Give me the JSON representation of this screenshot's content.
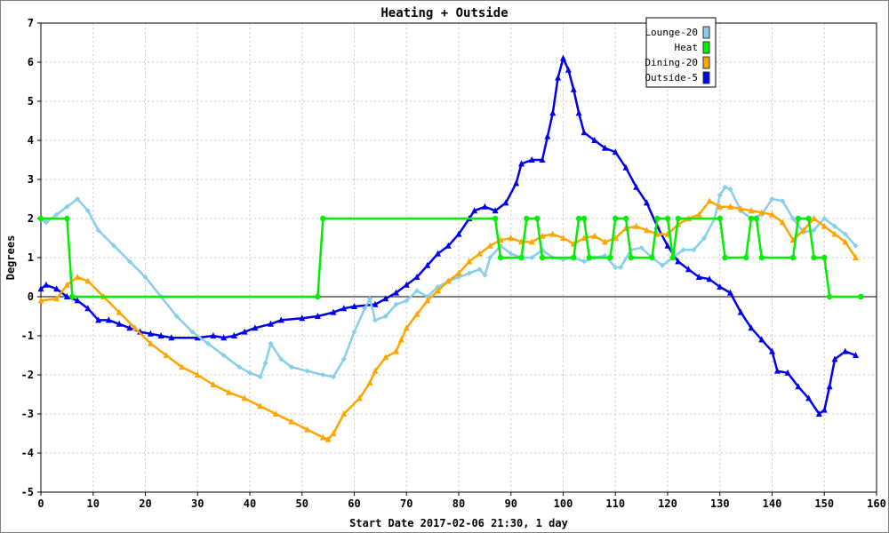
{
  "chart_data": {
    "type": "line",
    "title": "Heating + Outside",
    "xlabel": "Start Date 2017-02-06 21:30, 1 day",
    "ylabel": "Degrees",
    "xlim": [
      0,
      160
    ],
    "ylim": [
      -5,
      7
    ],
    "x_ticks": [
      "0",
      "10",
      "20",
      "30",
      "40",
      "50",
      "60",
      "70",
      "80",
      "90",
      "100",
      "110",
      "120",
      "130",
      "140",
      "150",
      "160"
    ],
    "y_ticks": [
      "-5",
      "-4",
      "-3",
      "-2",
      "-1",
      "0",
      "1",
      "2",
      "3",
      "4",
      "5",
      "6",
      "7"
    ],
    "grid": true,
    "legend_position": "top-right",
    "series": [
      {
        "name": "Lounge-20",
        "color": "#87ceeb",
        "marker": "diamond",
        "points": [
          [
            0,
            2.0
          ],
          [
            1,
            1.9
          ],
          [
            3,
            2.1
          ],
          [
            5,
            2.3
          ],
          [
            7,
            2.5
          ],
          [
            9,
            2.2
          ],
          [
            11,
            1.7
          ],
          [
            14,
            1.3
          ],
          [
            17,
            0.9
          ],
          [
            20,
            0.5
          ],
          [
            23,
            0.0
          ],
          [
            26,
            -0.5
          ],
          [
            29,
            -0.9
          ],
          [
            32,
            -1.2
          ],
          [
            35,
            -1.5
          ],
          [
            38,
            -1.8
          ],
          [
            40,
            -1.95
          ],
          [
            42,
            -2.05
          ],
          [
            43,
            -1.7
          ],
          [
            44,
            -1.2
          ],
          [
            46,
            -1.6
          ],
          [
            48,
            -1.8
          ],
          [
            51,
            -1.9
          ],
          [
            54,
            -2.0
          ],
          [
            56,
            -2.05
          ],
          [
            58,
            -1.6
          ],
          [
            60,
            -0.9
          ],
          [
            62,
            -0.3
          ],
          [
            63,
            -0.05
          ],
          [
            64,
            -0.6
          ],
          [
            66,
            -0.5
          ],
          [
            68,
            -0.2
          ],
          [
            70,
            -0.1
          ],
          [
            72,
            0.15
          ],
          [
            74,
            0.0
          ],
          [
            76,
            0.25
          ],
          [
            78,
            0.4
          ],
          [
            80,
            0.5
          ],
          [
            82,
            0.6
          ],
          [
            84,
            0.7
          ],
          [
            85,
            0.55
          ],
          [
            86,
            1.0
          ],
          [
            88,
            1.3
          ],
          [
            90,
            1.1
          ],
          [
            92,
            1.0
          ],
          [
            94,
            1.0
          ],
          [
            96,
            1.2
          ],
          [
            98,
            1.0
          ],
          [
            100,
            0.95
          ],
          [
            102,
            1.0
          ],
          [
            104,
            0.9
          ],
          [
            106,
            1.0
          ],
          [
            108,
            1.05
          ],
          [
            110,
            0.75
          ],
          [
            111,
            0.75
          ],
          [
            113,
            1.2
          ],
          [
            115,
            1.25
          ],
          [
            117,
            1.0
          ],
          [
            119,
            0.8
          ],
          [
            121,
            1.0
          ],
          [
            123,
            1.2
          ],
          [
            125,
            1.2
          ],
          [
            127,
            1.5
          ],
          [
            129,
            2.0
          ],
          [
            130,
            2.6
          ],
          [
            131,
            2.8
          ],
          [
            132,
            2.75
          ],
          [
            134,
            2.2
          ],
          [
            136,
            2.0
          ],
          [
            138,
            2.1
          ],
          [
            140,
            2.5
          ],
          [
            142,
            2.45
          ],
          [
            144,
            2.0
          ],
          [
            146,
            1.65
          ],
          [
            148,
            1.7
          ],
          [
            150,
            2.0
          ],
          [
            152,
            1.8
          ],
          [
            154,
            1.6
          ],
          [
            156,
            1.3
          ]
        ]
      },
      {
        "name": "Heat",
        "color": "#00ee00",
        "marker": "circle",
        "points": [
          [
            0,
            2
          ],
          [
            5,
            2
          ],
          [
            6,
            0
          ],
          [
            53,
            0
          ],
          [
            54,
            2
          ],
          [
            87,
            2
          ],
          [
            88,
            1
          ],
          [
            92,
            1
          ],
          [
            93,
            2
          ],
          [
            95,
            2
          ],
          [
            96,
            1
          ],
          [
            102,
            1
          ],
          [
            103,
            2
          ],
          [
            104,
            2
          ],
          [
            105,
            1
          ],
          [
            109,
            1
          ],
          [
            110,
            2
          ],
          [
            112,
            2
          ],
          [
            113,
            1
          ],
          [
            117,
            1
          ],
          [
            118,
            2
          ],
          [
            120,
            2
          ],
          [
            121,
            1
          ],
          [
            122,
            2
          ],
          [
            130,
            2
          ],
          [
            131,
            1
          ],
          [
            135,
            1
          ],
          [
            136,
            2
          ],
          [
            137,
            2
          ],
          [
            138,
            1
          ],
          [
            144,
            1
          ],
          [
            145,
            2
          ],
          [
            147,
            2
          ],
          [
            148,
            1
          ],
          [
            150,
            1
          ],
          [
            151,
            0
          ],
          [
            157,
            0
          ]
        ]
      },
      {
        "name": "Dining-20",
        "color": "#ffa500",
        "marker": "triangle",
        "points": [
          [
            0,
            -0.1
          ],
          [
            3,
            -0.05
          ],
          [
            5,
            0.3
          ],
          [
            7,
            0.5
          ],
          [
            9,
            0.4
          ],
          [
            12,
            0.0
          ],
          [
            15,
            -0.4
          ],
          [
            18,
            -0.8
          ],
          [
            21,
            -1.2
          ],
          [
            24,
            -1.5
          ],
          [
            27,
            -1.8
          ],
          [
            30,
            -2.0
          ],
          [
            33,
            -2.25
          ],
          [
            36,
            -2.45
          ],
          [
            39,
            -2.6
          ],
          [
            42,
            -2.8
          ],
          [
            45,
            -3.0
          ],
          [
            48,
            -3.2
          ],
          [
            51,
            -3.4
          ],
          [
            54,
            -3.6
          ],
          [
            55,
            -3.65
          ],
          [
            56,
            -3.5
          ],
          [
            58,
            -3.0
          ],
          [
            61,
            -2.6
          ],
          [
            63,
            -2.2
          ],
          [
            64,
            -1.9
          ],
          [
            66,
            -1.55
          ],
          [
            68,
            -1.4
          ],
          [
            69,
            -1.1
          ],
          [
            70,
            -0.8
          ],
          [
            72,
            -0.45
          ],
          [
            74,
            -0.1
          ],
          [
            76,
            0.15
          ],
          [
            78,
            0.4
          ],
          [
            80,
            0.6
          ],
          [
            82,
            0.9
          ],
          [
            84,
            1.1
          ],
          [
            86,
            1.3
          ],
          [
            88,
            1.45
          ],
          [
            90,
            1.5
          ],
          [
            92,
            1.4
          ],
          [
            94,
            1.4
          ],
          [
            96,
            1.55
          ],
          [
            98,
            1.6
          ],
          [
            100,
            1.5
          ],
          [
            102,
            1.35
          ],
          [
            104,
            1.5
          ],
          [
            106,
            1.55
          ],
          [
            108,
            1.4
          ],
          [
            110,
            1.5
          ],
          [
            112,
            1.75
          ],
          [
            114,
            1.8
          ],
          [
            116,
            1.7
          ],
          [
            118,
            1.6
          ],
          [
            120,
            1.6
          ],
          [
            122,
            1.85
          ],
          [
            124,
            2.0
          ],
          [
            126,
            2.1
          ],
          [
            128,
            2.45
          ],
          [
            130,
            2.3
          ],
          [
            132,
            2.3
          ],
          [
            134,
            2.25
          ],
          [
            136,
            2.2
          ],
          [
            138,
            2.15
          ],
          [
            140,
            2.1
          ],
          [
            142,
            1.9
          ],
          [
            144,
            1.45
          ],
          [
            146,
            1.7
          ],
          [
            148,
            2.0
          ],
          [
            150,
            1.8
          ],
          [
            152,
            1.6
          ],
          [
            154,
            1.4
          ],
          [
            156,
            1.0
          ]
        ]
      },
      {
        "name": "Outside-5",
        "color": "#0000ee",
        "marker": "triangle-filled",
        "points": [
          [
            0,
            0.2
          ],
          [
            1,
            0.3
          ],
          [
            3,
            0.2
          ],
          [
            5,
            0.0
          ],
          [
            7,
            -0.1
          ],
          [
            9,
            -0.3
          ],
          [
            11,
            -0.6
          ],
          [
            13,
            -0.6
          ],
          [
            15,
            -0.7
          ],
          [
            17,
            -0.8
          ],
          [
            19,
            -0.9
          ],
          [
            21,
            -0.95
          ],
          [
            23,
            -1.0
          ],
          [
            25,
            -1.05
          ],
          [
            30,
            -1.05
          ],
          [
            33,
            -1.0
          ],
          [
            35,
            -1.05
          ],
          [
            37,
            -1.0
          ],
          [
            39,
            -0.9
          ],
          [
            41,
            -0.8
          ],
          [
            44,
            -0.7
          ],
          [
            46,
            -0.6
          ],
          [
            50,
            -0.55
          ],
          [
            53,
            -0.5
          ],
          [
            56,
            -0.4
          ],
          [
            58,
            -0.3
          ],
          [
            60,
            -0.25
          ],
          [
            64,
            -0.2
          ],
          [
            66,
            -0.05
          ],
          [
            68,
            0.1
          ],
          [
            70,
            0.3
          ],
          [
            72,
            0.5
          ],
          [
            74,
            0.8
          ],
          [
            76,
            1.1
          ],
          [
            78,
            1.3
          ],
          [
            80,
            1.6
          ],
          [
            82,
            2.0
          ],
          [
            83,
            2.2
          ],
          [
            85,
            2.3
          ],
          [
            87,
            2.2
          ],
          [
            89,
            2.4
          ],
          [
            91,
            2.9
          ],
          [
            92,
            3.4
          ],
          [
            94,
            3.5
          ],
          [
            96,
            3.5
          ],
          [
            97,
            4.1
          ],
          [
            98,
            4.7
          ],
          [
            99,
            5.6
          ],
          [
            100,
            6.1
          ],
          [
            101,
            5.8
          ],
          [
            102,
            5.3
          ],
          [
            103,
            4.7
          ],
          [
            104,
            4.2
          ],
          [
            106,
            4.0
          ],
          [
            108,
            3.8
          ],
          [
            110,
            3.7
          ],
          [
            112,
            3.3
          ],
          [
            114,
            2.8
          ],
          [
            116,
            2.4
          ],
          [
            118,
            1.8
          ],
          [
            120,
            1.3
          ],
          [
            122,
            0.9
          ],
          [
            124,
            0.7
          ],
          [
            126,
            0.5
          ],
          [
            128,
            0.45
          ],
          [
            130,
            0.25
          ],
          [
            132,
            0.1
          ],
          [
            134,
            -0.4
          ],
          [
            136,
            -0.8
          ],
          [
            138,
            -1.1
          ],
          [
            140,
            -1.4
          ],
          [
            141,
            -1.9
          ],
          [
            143,
            -1.95
          ],
          [
            145,
            -2.3
          ],
          [
            147,
            -2.6
          ],
          [
            149,
            -3.0
          ],
          [
            150,
            -2.9
          ],
          [
            151,
            -2.3
          ],
          [
            152,
            -1.6
          ],
          [
            154,
            -1.4
          ],
          [
            156,
            -1.5
          ]
        ]
      }
    ]
  }
}
